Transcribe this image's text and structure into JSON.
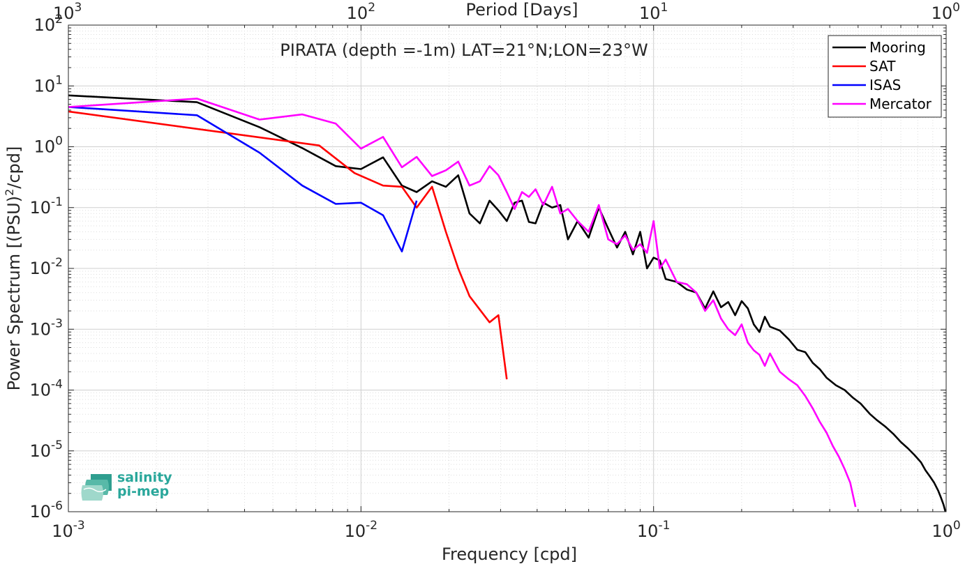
{
  "chart_data": {
    "type": "line",
    "title": "PIRATA (depth =-1m) LAT=21°N;LON=23°W",
    "xlabel": "Frequency [cpd]",
    "ylabel": "Power Spectrum [(PSU)",
    "ylabel_sup": "2",
    "ylabel_end": "/cpd]",
    "top_xlabel": "Period [Days]",
    "xscale": "log",
    "yscale": "log",
    "xlim": [
      0.001,
      1
    ],
    "ylim": [
      1e-06,
      100
    ],
    "grid": true,
    "legend_position": "top-right",
    "x_ticks": [
      {
        "base": "10",
        "exp": "-3"
      },
      {
        "base": "10",
        "exp": "-2"
      },
      {
        "base": "10",
        "exp": "-1"
      },
      {
        "base": "10",
        "exp": "0"
      }
    ],
    "top_ticks": [
      {
        "base": "10",
        "exp": "3"
      },
      {
        "base": "10",
        "exp": "2"
      },
      {
        "base": "10",
        "exp": "1"
      },
      {
        "base": "10",
        "exp": "0"
      }
    ],
    "y_ticks": [
      {
        "base": "10",
        "exp": "2"
      },
      {
        "base": "10",
        "exp": "1"
      },
      {
        "base": "10",
        "exp": "0"
      },
      {
        "base": "10",
        "exp": "-1"
      },
      {
        "base": "10",
        "exp": "-2"
      },
      {
        "base": "10",
        "exp": "-3"
      },
      {
        "base": "10",
        "exp": "-4"
      },
      {
        "base": "10",
        "exp": "-5"
      },
      {
        "base": "10",
        "exp": "-6"
      }
    ],
    "series": [
      {
        "name": "Mooring",
        "color": "#000000",
        "x": [
          0.001,
          0.00275,
          0.0045,
          0.0063,
          0.0082,
          0.01,
          0.0119,
          0.0138,
          0.0155,
          0.0175,
          0.0195,
          0.0215,
          0.0235,
          0.0255,
          0.0275,
          0.0295,
          0.0315,
          0.0335,
          0.0355,
          0.0375,
          0.0395,
          0.042,
          0.045,
          0.048,
          0.051,
          0.055,
          0.06,
          0.065,
          0.07,
          0.075,
          0.08,
          0.085,
          0.09,
          0.095,
          0.1,
          0.105,
          0.11,
          0.12,
          0.13,
          0.14,
          0.15,
          0.16,
          0.17,
          0.18,
          0.19,
          0.2,
          0.21,
          0.22,
          0.23,
          0.24,
          0.25,
          0.27,
          0.29,
          0.31,
          0.33,
          0.35,
          0.37,
          0.39,
          0.42,
          0.45,
          0.48,
          0.51,
          0.55,
          0.58,
          0.62,
          0.66,
          0.7,
          0.74,
          0.78,
          0.82,
          0.85,
          0.88,
          0.91,
          0.94,
          0.96,
          0.98,
          1.0
        ],
        "values": [
          7.0,
          5.4,
          2.1,
          0.95,
          0.48,
          0.43,
          0.67,
          0.23,
          0.18,
          0.27,
          0.22,
          0.34,
          0.08,
          0.055,
          0.13,
          0.09,
          0.06,
          0.12,
          0.13,
          0.058,
          0.055,
          0.12,
          0.1,
          0.11,
          0.03,
          0.06,
          0.032,
          0.1,
          0.045,
          0.022,
          0.04,
          0.017,
          0.04,
          0.01,
          0.015,
          0.0135,
          0.0067,
          0.006,
          0.0045,
          0.004,
          0.0022,
          0.0042,
          0.0023,
          0.0028,
          0.0017,
          0.0029,
          0.0022,
          0.0012,
          0.0009,
          0.0016,
          0.0011,
          0.00095,
          0.00068,
          0.00046,
          0.00042,
          0.00028,
          0.00022,
          0.00016,
          0.00012,
          0.0001,
          7.5e-05,
          6e-05,
          4e-05,
          3.2e-05,
          2.5e-05,
          1.9e-05,
          1.4e-05,
          1.1e-05,
          8.5e-06,
          6.5e-06,
          4.8e-06,
          3.8e-06,
          3e-06,
          2.2e-06,
          1.7e-06,
          1.3e-06,
          9e-07
        ]
      },
      {
        "name": "SAT",
        "color": "#ff0000",
        "x": [
          0.001,
          0.0072,
          0.0095,
          0.0119,
          0.0138,
          0.0155,
          0.0175,
          0.0195,
          0.0215,
          0.0235,
          0.0275,
          0.0295,
          0.0315
        ],
        "values": [
          3.8,
          1.05,
          0.37,
          0.23,
          0.22,
          0.1,
          0.22,
          0.04,
          0.01,
          0.0035,
          0.0013,
          0.0017,
          0.00015
        ]
      },
      {
        "name": "ISAS",
        "color": "#0000ff",
        "x": [
          0.001,
          0.00275,
          0.0045,
          0.0063,
          0.0082,
          0.01,
          0.0119,
          0.0138,
          0.0155
        ],
        "values": [
          4.5,
          3.3,
          0.8,
          0.23,
          0.115,
          0.12,
          0.075,
          0.019,
          0.13
        ]
      },
      {
        "name": "Mercator",
        "color": "#ff00ff",
        "x": [
          0.001,
          0.00275,
          0.0045,
          0.0063,
          0.0082,
          0.01,
          0.0119,
          0.0138,
          0.0155,
          0.0175,
          0.0195,
          0.0215,
          0.0235,
          0.0255,
          0.0275,
          0.0295,
          0.0315,
          0.0335,
          0.0355,
          0.0375,
          0.0395,
          0.042,
          0.045,
          0.048,
          0.051,
          0.055,
          0.06,
          0.065,
          0.07,
          0.075,
          0.08,
          0.085,
          0.09,
          0.095,
          0.1,
          0.105,
          0.11,
          0.12,
          0.13,
          0.14,
          0.15,
          0.16,
          0.17,
          0.18,
          0.19,
          0.2,
          0.21,
          0.22,
          0.23,
          0.24,
          0.25,
          0.27,
          0.29,
          0.31,
          0.33,
          0.35,
          0.37,
          0.39,
          0.41,
          0.43,
          0.45,
          0.47,
          0.49
        ],
        "values": [
          4.5,
          6.2,
          2.8,
          3.4,
          2.4,
          0.93,
          1.45,
          0.46,
          0.68,
          0.33,
          0.41,
          0.57,
          0.23,
          0.27,
          0.48,
          0.34,
          0.18,
          0.095,
          0.18,
          0.15,
          0.2,
          0.11,
          0.22,
          0.08,
          0.095,
          0.06,
          0.04,
          0.11,
          0.03,
          0.025,
          0.035,
          0.02,
          0.025,
          0.018,
          0.06,
          0.01,
          0.014,
          0.006,
          0.0055,
          0.004,
          0.002,
          0.003,
          0.0015,
          0.001,
          0.0008,
          0.0012,
          0.0006,
          0.00045,
          0.00038,
          0.00025,
          0.0004,
          0.0002,
          0.00015,
          0.00012,
          8e-05,
          5e-05,
          3e-05,
          2e-05,
          1.2e-05,
          8e-06,
          5e-06,
          3e-06,
          1.2e-06
        ]
      }
    ]
  },
  "logo": {
    "line1": "salinity",
    "line2": "pi-mep",
    "color": "#2aa79b"
  }
}
